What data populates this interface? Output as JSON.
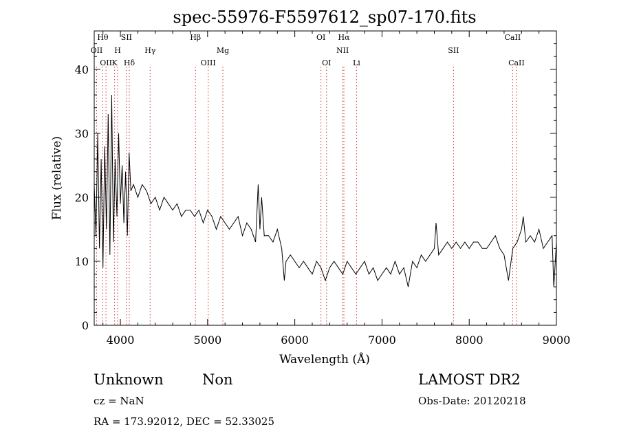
{
  "chart_data": {
    "type": "line",
    "title": "spec-55976-F5597612_sp07-170.fits",
    "xlabel": "Wavelength (Å)",
    "ylabel": "Flux (relative)",
    "xlim": [
      3700,
      9000
    ],
    "ylim": [
      0,
      46
    ],
    "xticks": [
      4000,
      5000,
      6000,
      7000,
      8000,
      9000
    ],
    "yticks": [
      0,
      10,
      20,
      30,
      40
    ],
    "grid": false,
    "series": [
      {
        "color": "#000000",
        "x": [
          3700,
          3720,
          3740,
          3760,
          3780,
          3800,
          3820,
          3840,
          3860,
          3880,
          3900,
          3920,
          3940,
          3960,
          3980,
          4000,
          4020,
          4040,
          4060,
          4080,
          4100,
          4120,
          4150,
          4200,
          4250,
          4300,
          4350,
          4400,
          4450,
          4500,
          4550,
          4600,
          4650,
          4700,
          4750,
          4800,
          4850,
          4900,
          4950,
          5000,
          5050,
          5100,
          5150,
          5200,
          5250,
          5300,
          5350,
          5400,
          5450,
          5500,
          5550,
          5580,
          5600,
          5620,
          5650,
          5700,
          5750,
          5800,
          5850,
          5880,
          5900,
          5950,
          6000,
          6050,
          6100,
          6150,
          6200,
          6250,
          6300,
          6350,
          6400,
          6450,
          6500,
          6550,
          6600,
          6650,
          6700,
          6750,
          6800,
          6850,
          6900,
          6950,
          7000,
          7050,
          7100,
          7150,
          7200,
          7250,
          7300,
          7350,
          7400,
          7450,
          7500,
          7550,
          7600,
          7620,
          7650,
          7700,
          7750,
          7800,
          7850,
          7900,
          7950,
          8000,
          8050,
          8100,
          8150,
          8200,
          8250,
          8300,
          8350,
          8400,
          8450,
          8500,
          8550,
          8600,
          8620,
          8650,
          8700,
          8750,
          8800,
          8850,
          8900,
          8950,
          8970,
          9000
        ],
        "y": [
          22,
          14,
          30,
          12,
          26,
          9,
          28,
          15,
          33,
          11,
          36,
          13,
          26,
          17,
          30,
          19,
          25,
          16,
          24,
          14,
          27,
          21,
          22,
          20,
          22,
          21,
          19,
          20,
          18,
          20,
          19,
          18,
          19,
          17,
          18,
          18,
          17,
          18,
          16,
          18,
          17,
          15,
          17,
          16,
          15,
          16,
          17,
          14,
          16,
          15,
          13,
          22,
          15,
          20,
          14,
          14,
          13,
          15,
          12,
          7,
          10,
          11,
          10,
          9,
          10,
          9,
          8,
          10,
          9,
          7,
          9,
          10,
          9,
          8,
          10,
          9,
          8,
          9,
          10,
          8,
          9,
          7,
          8,
          9,
          8,
          10,
          8,
          9,
          6,
          10,
          9,
          11,
          10,
          11,
          12,
          16,
          11,
          12,
          13,
          12,
          13,
          12,
          13,
          12,
          13,
          13,
          12,
          12,
          13,
          14,
          12,
          11,
          7,
          12,
          13,
          15,
          17,
          13,
          14,
          13,
          15,
          12,
          13,
          14,
          6,
          13
        ]
      }
    ],
    "lines": [
      {
        "wavelength": 3727,
        "label": "OII"
      },
      {
        "wavelength": 3798,
        "label": "Hθ"
      },
      {
        "wavelength": 3835,
        "label": "OII"
      },
      {
        "wavelength": 3934,
        "label": "K"
      },
      {
        "wavelength": 3969,
        "label": "H"
      },
      {
        "wavelength": 4070,
        "label": "SII"
      },
      {
        "wavelength": 4102,
        "label": "Hδ"
      },
      {
        "wavelength": 4341,
        "label": "Hγ"
      },
      {
        "wavelength": 4861,
        "label": "Hβ"
      },
      {
        "wavelength": 5007,
        "label": "OIII"
      },
      {
        "wavelength": 5175,
        "label": "Mg"
      },
      {
        "wavelength": 6300,
        "label": "OI"
      },
      {
        "wavelength": 6364,
        "label": "OI"
      },
      {
        "wavelength": 6548,
        "label": "NII"
      },
      {
        "wavelength": 6563,
        "label": "Hα"
      },
      {
        "wavelength": 6708,
        "label": "Li"
      },
      {
        "wavelength": 7820,
        "label": "SII"
      },
      {
        "wavelength": 8498,
        "label": "CaII"
      },
      {
        "wavelength": 8542,
        "label": "CaII"
      }
    ]
  },
  "info": {
    "class_label": "Unknown",
    "subclass_label": "Non",
    "cz": "cz = NaN",
    "coords": "RA = 173.92012, DEC =  52.33025",
    "survey": "LAMOST DR2",
    "obs_date": "Obs-Date: 20120218"
  }
}
